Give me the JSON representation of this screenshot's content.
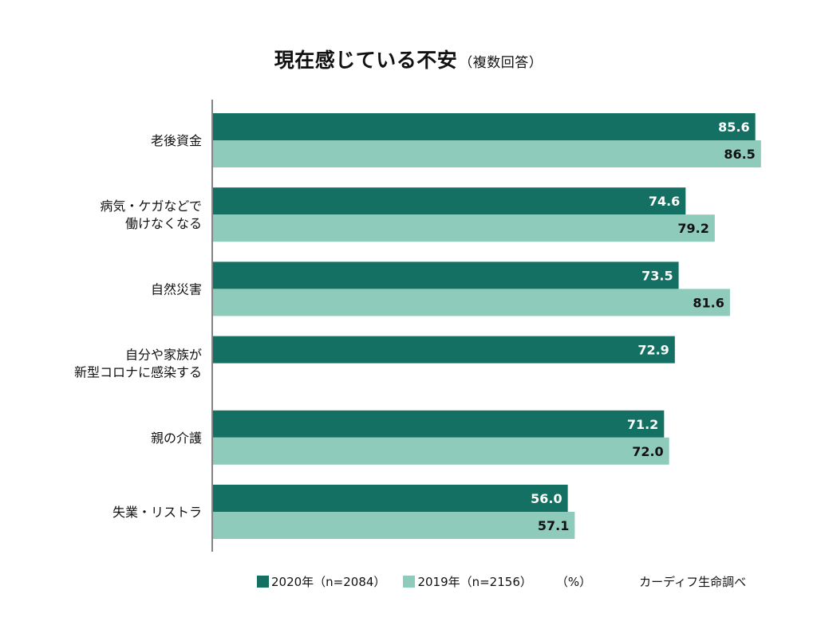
{
  "chart_data": {
    "type": "bar",
    "orientation": "horizontal",
    "title": "現在感じている不安",
    "subtitle": "（複数回答）",
    "categories": [
      [
        "老後資金"
      ],
      [
        "病気・ケガなどで",
        "働けなくなる"
      ],
      [
        "自然災害"
      ],
      [
        "自分や家族が",
        "新型コロナに感染する"
      ],
      [
        "親の介護"
      ],
      [
        "失業・リストラ"
      ]
    ],
    "series": [
      {
        "name": "2020年（n=2084）",
        "color": "#137062",
        "label_color": "#ffffff",
        "values": [
          85.6,
          74.6,
          73.5,
          72.9,
          71.2,
          56.0
        ]
      },
      {
        "name": "2019年（n=2156）",
        "color": "#8ecbbb",
        "label_color": "#111111",
        "values": [
          86.5,
          79.2,
          81.6,
          null,
          72.0,
          57.1
        ]
      }
    ],
    "unit": "（%）",
    "source": "カーディフ生命調べ",
    "xlim": [
      0,
      100
    ],
    "grid": false,
    "legend_position": "bottom",
    "data_labels": true
  }
}
